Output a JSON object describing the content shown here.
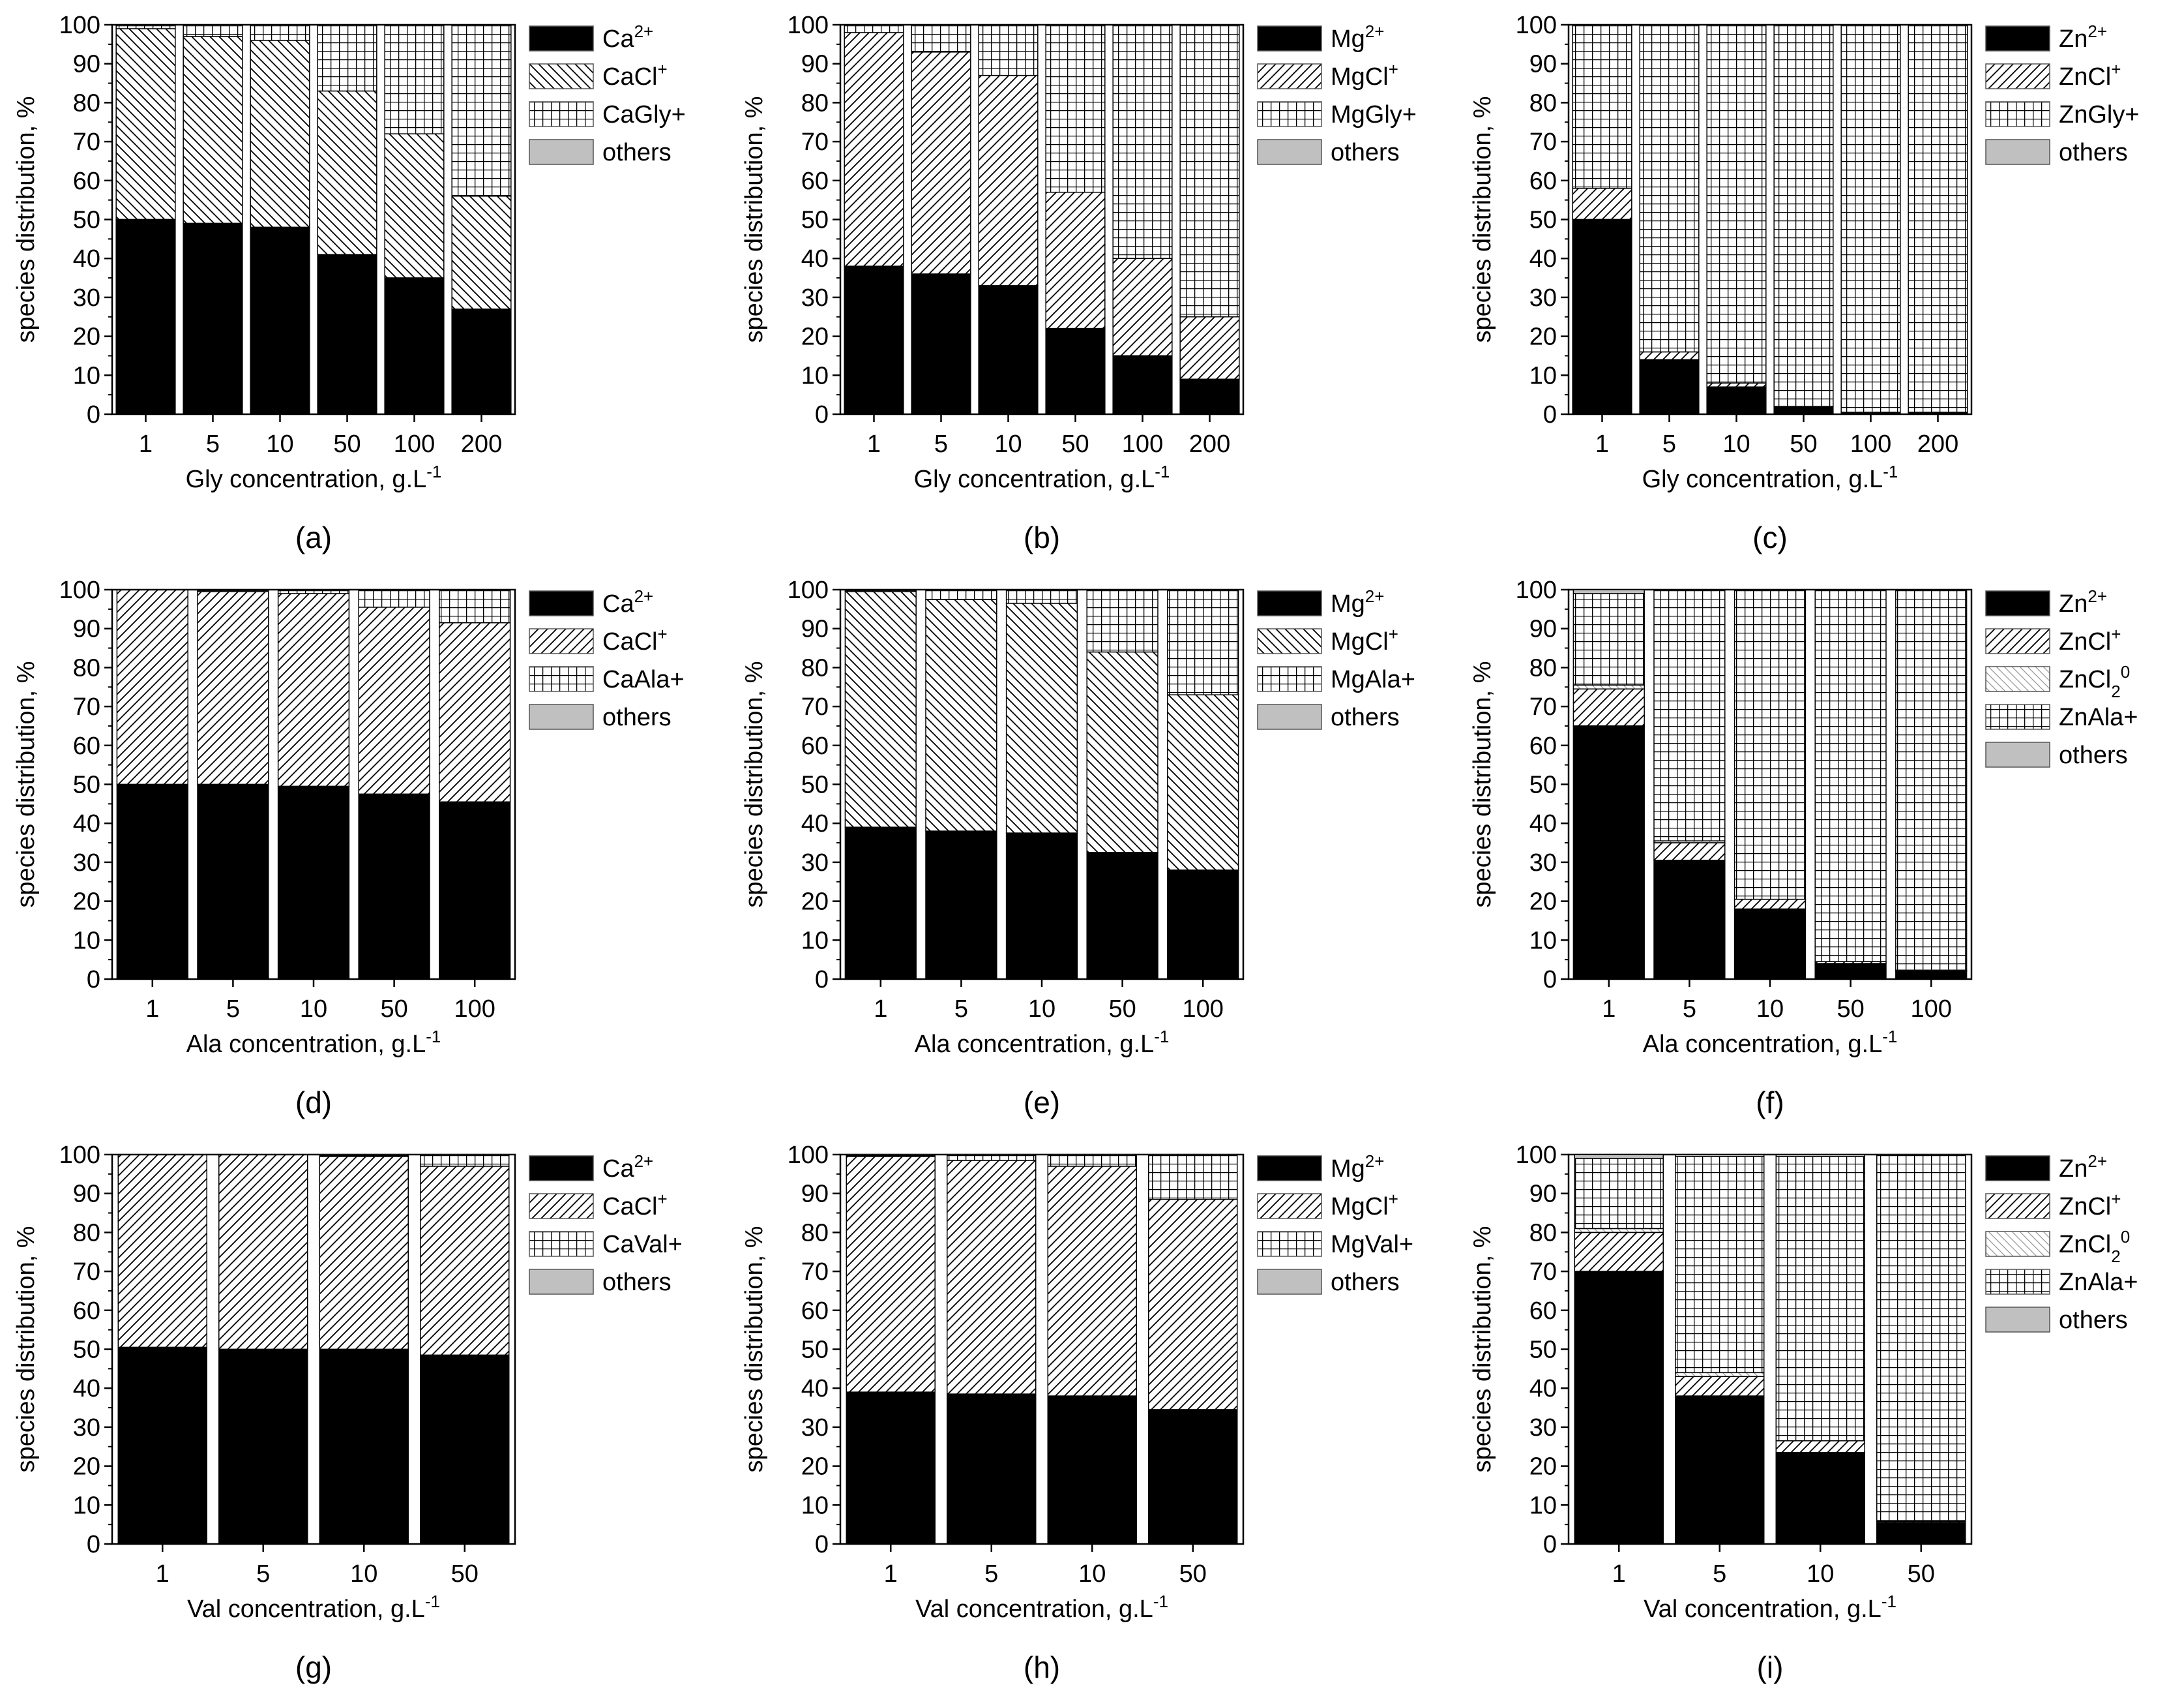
{
  "chart_data": [
    {
      "panel_label": "(a)",
      "type": "bar",
      "stacked": true,
      "categories": [
        "1",
        "5",
        "10",
        "50",
        "100",
        "200"
      ],
      "xlabel": "Gly concentration, g.L",
      "xlabel_sup": "-1",
      "ylabel": "species distribution, %",
      "ylim": [
        0,
        100
      ],
      "yticks": [
        "0",
        "10",
        "20",
        "30",
        "40",
        "50",
        "60",
        "70",
        "80",
        "90",
        "100"
      ],
      "series": [
        {
          "name": "Ca",
          "sup": "2+",
          "pattern": "solid",
          "values": [
            50,
            49,
            48,
            41,
            35,
            27
          ]
        },
        {
          "name": "CaCl",
          "sup": "+",
          "pattern": "hatch-back",
          "values": [
            49,
            48,
            48,
            42,
            37,
            29
          ]
        },
        {
          "name": "CaGly+",
          "sup": "",
          "pattern": "grid",
          "values": [
            1,
            3,
            4,
            17,
            28,
            44
          ]
        },
        {
          "name": "others",
          "sup": "",
          "pattern": "gray",
          "values": [
            0,
            0,
            0,
            0,
            0,
            0
          ]
        }
      ]
    },
    {
      "panel_label": "(b)",
      "type": "bar",
      "stacked": true,
      "categories": [
        "1",
        "5",
        "10",
        "50",
        "100",
        "200"
      ],
      "xlabel": "Gly concentration, g.L",
      "xlabel_sup": "-1",
      "ylabel": "species distribution, %",
      "ylim": [
        0,
        100
      ],
      "yticks": [
        "0",
        "10",
        "20",
        "30",
        "40",
        "50",
        "60",
        "70",
        "80",
        "90",
        "100"
      ],
      "series": [
        {
          "name": "Mg",
          "sup": "2+",
          "pattern": "solid",
          "values": [
            38,
            36,
            33,
            22,
            15,
            9
          ]
        },
        {
          "name": "MgCl",
          "sup": "+",
          "pattern": "hatch-fwd",
          "values": [
            60,
            57,
            54,
            35,
            25,
            16
          ]
        },
        {
          "name": "MgGly+",
          "sup": "",
          "pattern": "grid",
          "values": [
            2,
            7,
            13,
            43,
            60,
            75
          ]
        },
        {
          "name": "others",
          "sup": "",
          "pattern": "gray",
          "values": [
            0,
            0,
            0,
            0,
            0,
            0
          ]
        }
      ]
    },
    {
      "panel_label": "(c)",
      "type": "bar",
      "stacked": true,
      "categories": [
        "1",
        "5",
        "10",
        "50",
        "100",
        "200"
      ],
      "xlabel": "Gly concentration, g.L",
      "xlabel_sup": "-1",
      "ylabel": "species distribution, %",
      "ylim": [
        0,
        100
      ],
      "yticks": [
        "0",
        "10",
        "20",
        "30",
        "40",
        "50",
        "60",
        "70",
        "80",
        "90",
        "100"
      ],
      "series": [
        {
          "name": "Zn",
          "sup": "2+",
          "pattern": "solid",
          "values": [
            50,
            14,
            7,
            2,
            0.5,
            0.5
          ]
        },
        {
          "name": "ZnCl",
          "sup": "+",
          "pattern": "hatch-fwd",
          "values": [
            8,
            2,
            1,
            0,
            0,
            0
          ]
        },
        {
          "name": "ZnGly+",
          "sup": "",
          "pattern": "grid",
          "values": [
            42,
            84,
            92,
            98,
            99.5,
            99.5
          ]
        },
        {
          "name": "others",
          "sup": "",
          "pattern": "gray",
          "values": [
            0,
            0,
            0,
            0,
            0,
            0
          ]
        }
      ]
    },
    {
      "panel_label": "(d)",
      "type": "bar",
      "stacked": true,
      "categories": [
        "1",
        "5",
        "10",
        "50",
        "100"
      ],
      "xlabel": "Ala concentration, g.L",
      "xlabel_sup": "-1",
      "ylabel": "species distribution, %",
      "ylim": [
        0,
        100
      ],
      "yticks": [
        "0",
        "10",
        "20",
        "30",
        "40",
        "50",
        "60",
        "70",
        "80",
        "90",
        "100"
      ],
      "series": [
        {
          "name": "Ca",
          "sup": "2+",
          "pattern": "solid",
          "values": [
            50,
            50,
            49.5,
            47.5,
            45.5
          ]
        },
        {
          "name": "CaCl",
          "sup": "+",
          "pattern": "hatch-fwd",
          "values": [
            50,
            49.5,
            49.5,
            48,
            46
          ]
        },
        {
          "name": "CaAla+",
          "sup": "",
          "pattern": "grid",
          "values": [
            0,
            0.5,
            1,
            4.5,
            8.5
          ]
        },
        {
          "name": "others",
          "sup": "",
          "pattern": "gray",
          "values": [
            0,
            0,
            0,
            0,
            0
          ]
        }
      ]
    },
    {
      "panel_label": "(e)",
      "type": "bar",
      "stacked": true,
      "categories": [
        "1",
        "5",
        "10",
        "50",
        "100"
      ],
      "xlabel": "Ala concentration, g.L",
      "xlabel_sup": "-1",
      "ylabel": "species distribution, %",
      "ylim": [
        0,
        100
      ],
      "yticks": [
        "0",
        "10",
        "20",
        "30",
        "40",
        "50",
        "60",
        "70",
        "80",
        "90",
        "100"
      ],
      "series": [
        {
          "name": "Mg",
          "sup": "2+",
          "pattern": "solid",
          "values": [
            39,
            38,
            37.5,
            32.5,
            28
          ]
        },
        {
          "name": "MgCl",
          "sup": "+",
          "pattern": "hatch-back",
          "values": [
            60.5,
            59.5,
            59,
            51.5,
            45
          ]
        },
        {
          "name": "MgAla+",
          "sup": "",
          "pattern": "grid",
          "values": [
            0.5,
            2.5,
            3.5,
            16,
            27
          ]
        },
        {
          "name": "others",
          "sup": "",
          "pattern": "gray",
          "values": [
            0,
            0,
            0,
            0,
            0
          ]
        }
      ]
    },
    {
      "panel_label": "(f)",
      "type": "bar",
      "stacked": true,
      "categories": [
        "1",
        "5",
        "10",
        "50",
        "100"
      ],
      "xlabel": "Ala concentration, g.L",
      "xlabel_sup": "-1",
      "ylabel": "species distribution, %",
      "ylim": [
        0,
        100
      ],
      "yticks": [
        "0",
        "10",
        "20",
        "30",
        "40",
        "50",
        "60",
        "70",
        "80",
        "90",
        "100"
      ],
      "series": [
        {
          "name": "Zn",
          "sup": "2+",
          "pattern": "solid",
          "values": [
            65,
            30.5,
            18,
            4,
            2
          ]
        },
        {
          "name": "ZnCl",
          "sup": "+",
          "pattern": "hatch-fwd",
          "values": [
            9.5,
            4.5,
            2.5,
            0.5,
            0.3
          ]
        },
        {
          "name": "ZnCl",
          "sup": "0",
          "sub": "2",
          "pattern": "hatch-back-light",
          "values": [
            1,
            0.5,
            0,
            0,
            0
          ]
        },
        {
          "name": "ZnAla+",
          "sup": "",
          "pattern": "grid",
          "values": [
            23.5,
            64.5,
            79.5,
            95.5,
            97.7
          ]
        },
        {
          "name": "others",
          "sup": "",
          "pattern": "gray",
          "values": [
            1,
            0,
            0,
            0,
            0
          ]
        }
      ]
    },
    {
      "panel_label": "(g)",
      "type": "bar",
      "stacked": true,
      "categories": [
        "1",
        "5",
        "10",
        "50"
      ],
      "xlabel": "Val concentration, g.L",
      "xlabel_sup": "-1",
      "ylabel": "species distribution, %",
      "ylim": [
        0,
        100
      ],
      "yticks": [
        "0",
        "10",
        "20",
        "30",
        "40",
        "50",
        "60",
        "70",
        "80",
        "90",
        "100"
      ],
      "series": [
        {
          "name": "Ca",
          "sup": "2+",
          "pattern": "solid",
          "values": [
            50.5,
            50,
            50,
            48.5
          ]
        },
        {
          "name": "CaCl",
          "sup": "+",
          "pattern": "hatch-fwd",
          "values": [
            49.5,
            50,
            49.5,
            48.5
          ]
        },
        {
          "name": "CaVal+",
          "sup": "",
          "pattern": "grid",
          "values": [
            0,
            0,
            0.5,
            3
          ]
        },
        {
          "name": "others",
          "sup": "",
          "pattern": "gray",
          "values": [
            0,
            0,
            0,
            0
          ]
        }
      ]
    },
    {
      "panel_label": "(h)",
      "type": "bar",
      "stacked": true,
      "categories": [
        "1",
        "5",
        "10",
        "50"
      ],
      "xlabel": "Val concentration, g.L",
      "xlabel_sup": "-1",
      "ylabel": "species distribution, %",
      "ylim": [
        0,
        100
      ],
      "yticks": [
        "0",
        "10",
        "20",
        "30",
        "40",
        "50",
        "60",
        "70",
        "80",
        "90",
        "100"
      ],
      "series": [
        {
          "name": "Mg",
          "sup": "2+",
          "pattern": "solid",
          "values": [
            39,
            38.5,
            38,
            34.5
          ]
        },
        {
          "name": "MgCl",
          "sup": "+",
          "pattern": "hatch-fwd",
          "values": [
            60.5,
            60,
            59,
            54
          ]
        },
        {
          "name": "MgVal+",
          "sup": "",
          "pattern": "grid",
          "values": [
            0.5,
            1.5,
            3,
            11.5
          ]
        },
        {
          "name": "others",
          "sup": "",
          "pattern": "gray",
          "values": [
            0,
            0,
            0,
            0
          ]
        }
      ]
    },
    {
      "panel_label": "(i)",
      "type": "bar",
      "stacked": true,
      "categories": [
        "1",
        "5",
        "10",
        "50"
      ],
      "xlabel": "Val concentration, g.L",
      "xlabel_sup": "-1",
      "ylabel": "species distribution, %",
      "ylim": [
        0,
        100
      ],
      "yticks": [
        "0",
        "10",
        "20",
        "30",
        "40",
        "50",
        "60",
        "70",
        "80",
        "90",
        "100"
      ],
      "series": [
        {
          "name": "Zn",
          "sup": "2+",
          "pattern": "solid",
          "values": [
            70,
            38,
            23.5,
            5.5
          ]
        },
        {
          "name": "ZnCl",
          "sup": "+",
          "pattern": "hatch-fwd",
          "values": [
            10,
            5,
            3,
            0.3
          ]
        },
        {
          "name": "ZnCl",
          "sup": "0",
          "sub": "2",
          "pattern": "hatch-back-light",
          "values": [
            1,
            1,
            0,
            0
          ]
        },
        {
          "name": "ZnAla+",
          "sup": "",
          "pattern": "grid",
          "values": [
            18,
            55.5,
            73,
            94.2
          ]
        },
        {
          "name": "others",
          "sup": "",
          "pattern": "gray",
          "values": [
            1,
            0.5,
            0.5,
            0
          ]
        }
      ]
    }
  ]
}
